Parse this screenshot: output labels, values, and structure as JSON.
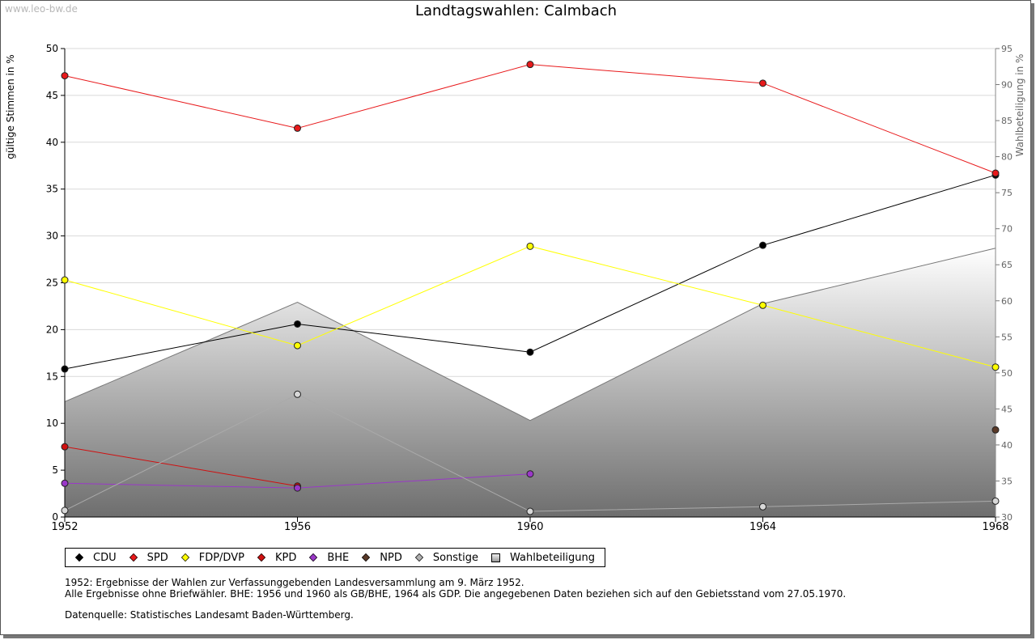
{
  "watermark": "www.leo-bw.de",
  "chart_data": {
    "type": "line",
    "title": "Landtagswahlen: Calmbach",
    "ylabel": "gültige Stimmen in %",
    "y2label": "Wahlbeteiligung in %",
    "x": [
      "1952",
      "1956",
      "1960",
      "1964",
      "1968"
    ],
    "ylim": [
      0,
      50
    ],
    "y2lim": [
      30,
      95
    ],
    "yticks": [
      0,
      5,
      10,
      15,
      20,
      25,
      30,
      35,
      40,
      45,
      50
    ],
    "y2ticks": [
      30,
      35,
      40,
      45,
      50,
      55,
      60,
      65,
      70,
      75,
      80,
      85,
      90,
      95
    ],
    "grid": true,
    "legend_position": "bottom",
    "series": [
      {
        "name": "CDU",
        "color": "#000000",
        "values": [
          15.8,
          20.6,
          17.6,
          29.0,
          36.5
        ]
      },
      {
        "name": "SPD",
        "color": "#e8191b",
        "values": [
          47.1,
          41.5,
          48.3,
          46.3,
          36.7
        ]
      },
      {
        "name": "FDP/DVP",
        "color": "#ffff00",
        "values": [
          25.3,
          18.3,
          28.9,
          22.6,
          16.0
        ]
      },
      {
        "name": "KPD",
        "color": "#d01010",
        "values": [
          7.5,
          3.3,
          null,
          null,
          null
        ]
      },
      {
        "name": "BHE",
        "color": "#9a38c8",
        "values": [
          3.6,
          3.1,
          4.6,
          null,
          null
        ]
      },
      {
        "name": "NPD",
        "color": "#5a3a28",
        "values": [
          null,
          null,
          null,
          null,
          9.3
        ]
      },
      {
        "name": "Sonstige",
        "color": "#aaaaaa",
        "values": [
          0.7,
          13.1,
          0.6,
          1.1,
          1.7
        ]
      },
      {
        "name": "Wahlbeteiligung",
        "type": "area",
        "axis": "right",
        "color": "#888888",
        "values": [
          46.0,
          59.8,
          43.4,
          59.6,
          67.3
        ]
      }
    ]
  },
  "notes": {
    "line1": "1952: Ergebnisse der Wahlen zur Verfassunggebenden Landesversammlung am 9. März 1952.",
    "line2": "Alle Ergebnisse ohne Briefwähler. BHE: 1956 und 1960 als GB/BHE, 1964 als GDP. Die angegebenen Daten beziehen sich auf den Gebietsstand vom 27.05.1970.",
    "source": "Datenquelle: Statistisches Landesamt Baden-Württemberg."
  }
}
